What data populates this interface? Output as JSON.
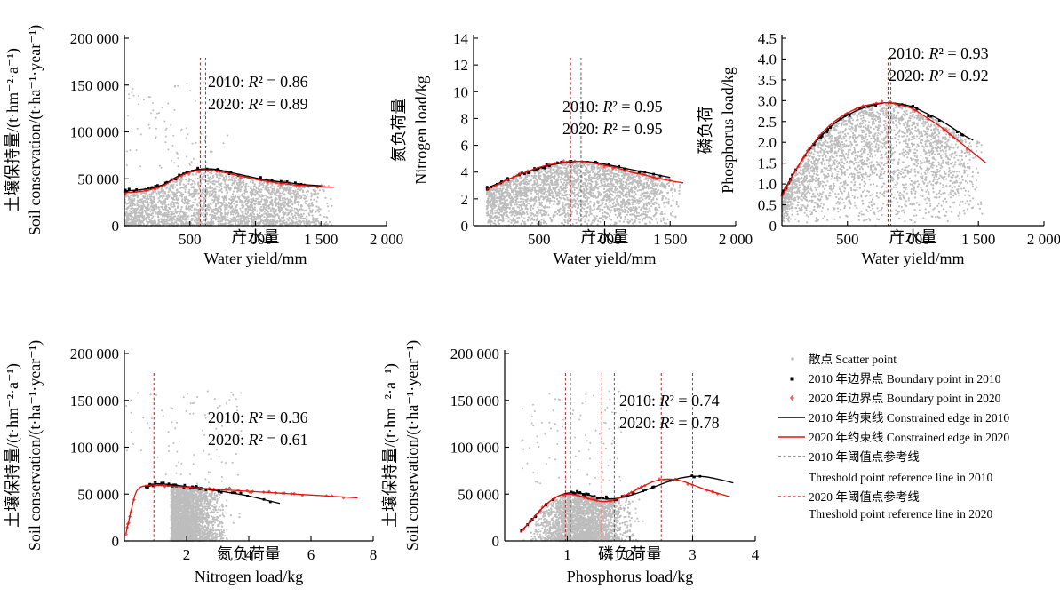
{
  "colors": {
    "scatter": "#bdbdbd",
    "line2010": "#000000",
    "line2020": "#e8100a",
    "boundary2010": "#000000",
    "boundary2020": "#ef5a5a",
    "ref2010": "#555555",
    "ref2020": "#e8100a"
  },
  "legend": {
    "scatter": "散点 Scatter point",
    "b2010": "2010 年边界点 Boundary point in 2010",
    "b2020": "2020 年边界点 Boundary point in 2020",
    "c2010": "2010 年约束线 Constrained edge in 2010",
    "c2020": "2020 年约束线 Constrained edge in 2020",
    "r2010a": "2010 年阈值点参考线",
    "r2010b": "Threshold point reference line in 2010",
    "r2020a": "2020 年阈值点参考线",
    "r2020b": "Threshold point reference line in 2020"
  },
  "chart_data": [
    {
      "type": "scatter",
      "xlabel_zh": "产水量",
      "xlabel_en": "Water yield/mm",
      "ylabel_zh": "土壤保持量/(t·hm⁻²·a⁻¹)",
      "ylabel_en": "Soil conservation/(t·ha⁻¹·year⁻¹)",
      "xlim": [
        0,
        2000
      ],
      "ylim": [
        0,
        200000
      ],
      "xticks": [
        500,
        1000,
        1500,
        2000
      ],
      "xtick_labels": [
        "500",
        "1 000",
        "1 500",
        "2 000"
      ],
      "yticks": [
        0,
        50000,
        100000,
        150000,
        200000
      ],
      "ytick_labels": [
        "0",
        "50 000",
        "100 000",
        "150 000",
        "200 000"
      ],
      "annotation": {
        "r2_2010": "2010: R² = 0.86",
        "r2_2020": "2020: R² = 0.89"
      },
      "threshold_2010": [
        620
      ],
      "threshold_2020": [
        580
      ],
      "series": [
        {
          "name": "2010 年约束线 Constrained edge in 2010",
          "x": [
            0,
            100,
            200,
            300,
            400,
            500,
            600,
            700,
            800,
            900,
            1000,
            1100,
            1200,
            1300,
            1400,
            1500
          ],
          "y": [
            37000,
            38000,
            40000,
            44000,
            52000,
            58000,
            60500,
            60000,
            57000,
            54000,
            51000,
            48500,
            46500,
            45000,
            43500,
            42500
          ]
        },
        {
          "name": "2020 年约束线 Constrained edge in 2020",
          "x": [
            0,
            100,
            200,
            300,
            400,
            500,
            600,
            700,
            800,
            900,
            1000,
            1100,
            1200,
            1300,
            1400,
            1500,
            1600
          ],
          "y": [
            35000,
            36000,
            38500,
            43000,
            51000,
            57000,
            59500,
            58500,
            55500,
            52500,
            49500,
            47000,
            45000,
            43500,
            42500,
            41500,
            41000
          ]
        }
      ]
    },
    {
      "type": "scatter",
      "xlabel_zh": "产水量",
      "xlabel_en": "Water yield/mm",
      "ylabel_zh": "氮负荷量",
      "ylabel_en": "Nitrogen load/kg",
      "xlim": [
        0,
        2000
      ],
      "ylim": [
        0,
        14
      ],
      "xticks": [
        500,
        1000,
        1500,
        2000
      ],
      "xtick_labels": [
        "500",
        "1 000",
        "1 500",
        "2 000"
      ],
      "yticks": [
        0,
        2,
        4,
        6,
        8,
        10,
        12,
        14
      ],
      "ytick_labels": [
        "0",
        "2",
        "4",
        "6",
        "8",
        "10",
        "12",
        "14"
      ],
      "annotation": {
        "r2_2010": "2010: R² = 0.95",
        "r2_2020": "2020: R² = 0.95"
      },
      "threshold_2010": [
        820
      ],
      "threshold_2020": [
        740
      ],
      "series": [
        {
          "name": "2010 年约束线 Constrained edge in 2010",
          "x": [
            100,
            200,
            300,
            400,
            500,
            600,
            700,
            800,
            900,
            1000,
            1100,
            1200,
            1300,
            1400,
            1500
          ],
          "y": [
            2.8,
            3.2,
            3.6,
            4.0,
            4.3,
            4.55,
            4.7,
            4.8,
            4.75,
            4.6,
            4.4,
            4.2,
            4.0,
            3.8,
            3.6
          ]
        },
        {
          "name": "2020 年约束线 Constrained edge in 2020",
          "x": [
            100,
            200,
            300,
            400,
            500,
            600,
            700,
            800,
            900,
            1000,
            1100,
            1200,
            1300,
            1400,
            1500,
            1600
          ],
          "y": [
            2.7,
            3.15,
            3.6,
            4.0,
            4.35,
            4.6,
            4.75,
            4.8,
            4.7,
            4.5,
            4.3,
            4.0,
            3.8,
            3.55,
            3.35,
            3.2
          ]
        }
      ]
    },
    {
      "type": "scatter",
      "xlabel_zh": "产水量",
      "xlabel_en": "Water yield/mm",
      "ylabel_zh": "磷负荷",
      "ylabel_en": "Phosphorus load/kg",
      "xlim": [
        0,
        2000
      ],
      "ylim": [
        0,
        4.5
      ],
      "xticks": [
        500,
        1000,
        1500,
        2000
      ],
      "xtick_labels": [
        "500",
        "1 000",
        "1 500",
        "2 000"
      ],
      "yticks": [
        0,
        0.5,
        1.0,
        1.5,
        2.0,
        2.5,
        3.0,
        3.5,
        4.0,
        4.5
      ],
      "ytick_labels": [
        "0",
        "0.5",
        "1.0",
        "1.5",
        "2.0",
        "2.5",
        "3.0",
        "3.5",
        "4.0",
        "4.5"
      ],
      "annotation": {
        "r2_2010": "2010: R² = 0.93",
        "r2_2020": "2020: R² = 0.92"
      },
      "threshold_2010": [
        830
      ],
      "threshold_2020": [
        810
      ],
      "series": [
        {
          "name": "2010 年约束线 Constrained edge in 2010",
          "x": [
            0,
            100,
            200,
            300,
            400,
            500,
            600,
            700,
            800,
            900,
            1000,
            1100,
            1200,
            1300,
            1400,
            1460
          ],
          "y": [
            0.75,
            1.3,
            1.8,
            2.15,
            2.45,
            2.65,
            2.8,
            2.9,
            2.95,
            2.92,
            2.85,
            2.7,
            2.55,
            2.35,
            2.15,
            2.05
          ]
        },
        {
          "name": "2020 年约束线 Constrained edge in 2020",
          "x": [
            0,
            100,
            200,
            300,
            400,
            500,
            600,
            700,
            800,
            900,
            1000,
            1100,
            1200,
            1300,
            1400,
            1500,
            1560
          ],
          "y": [
            0.7,
            1.3,
            1.8,
            2.2,
            2.5,
            2.7,
            2.85,
            2.92,
            2.95,
            2.9,
            2.8,
            2.6,
            2.4,
            2.15,
            1.9,
            1.65,
            1.5
          ]
        }
      ]
    },
    {
      "type": "scatter",
      "xlabel_zh": "氮负荷量",
      "xlabel_en": "Nitrogen load/kg",
      "ylabel_zh": "土壤保持量/(t·hm⁻²·a⁻¹)",
      "ylabel_en": "Soil conservation/(t·ha⁻¹·year⁻¹)",
      "xlim": [
        0,
        8
      ],
      "ylim": [
        0,
        200000
      ],
      "xticks": [
        2,
        4,
        6,
        8
      ],
      "xtick_labels": [
        "2",
        "4",
        "6",
        "8"
      ],
      "yticks": [
        0,
        50000,
        100000,
        150000,
        200000
      ],
      "ytick_labels": [
        "0",
        "50 000",
        "100 000",
        "150 000",
        "200 000"
      ],
      "annotation": {
        "r2_2010": "2010: R² = 0.36",
        "r2_2020": "2020: R² = 0.61"
      },
      "threshold_2010": [],
      "threshold_2020": [
        0.95
      ],
      "series": [
        {
          "name": "2010 年约束线 Constrained edge in 2010",
          "x": [
            0.7,
            1,
            1.5,
            2,
            2.5,
            3,
            3.5,
            4,
            4.5,
            5
          ],
          "y": [
            58000,
            61000,
            60000,
            58000,
            56000,
            53500,
            51000,
            48000,
            44000,
            40000
          ]
        },
        {
          "name": "2020 年约束线 Constrained edge in 2020",
          "x": [
            0.05,
            0.2,
            0.35,
            0.5,
            0.7,
            1,
            2,
            3,
            4,
            5,
            6,
            7,
            7.5
          ],
          "y": [
            8000,
            30000,
            50000,
            57000,
            59000,
            59500,
            57500,
            55000,
            53000,
            51000,
            49000,
            47000,
            46000
          ]
        }
      ]
    },
    {
      "type": "scatter",
      "xlabel_zh": "磷负荷量",
      "xlabel_en": "Phosphorus load/kg",
      "ylabel_zh": "土壤保持量/(t·hm⁻²·a⁻¹)",
      "ylabel_en": "Soil conservation/(t·ha⁻¹·year⁻¹)",
      "xlim": [
        0,
        4
      ],
      "ylim": [
        0,
        200000
      ],
      "xticks": [
        1,
        2,
        3,
        4
      ],
      "xtick_labels": [
        "1",
        "2",
        "3",
        "4"
      ],
      "yticks": [
        0,
        50000,
        100000,
        150000,
        200000
      ],
      "ytick_labels": [
        "0",
        "50 000",
        "100 000",
        "150 000",
        "200 000"
      ],
      "annotation": {
        "r2_2010": "2010: R² = 0.74",
        "r2_2020": "2020: R² = 0.78"
      },
      "threshold_2010": [
        1.05,
        1.75,
        3.0
      ],
      "threshold_2020": [
        0.97,
        1.55,
        2.5
      ],
      "series": [
        {
          "name": "2010 年约束线 Constrained edge in 2010",
          "x": [
            0.25,
            0.4,
            0.6,
            0.8,
            1.0,
            1.2,
            1.4,
            1.6,
            1.8,
            2.0,
            2.2,
            2.4,
            2.6,
            2.8,
            3.0,
            3.2,
            3.4,
            3.65
          ],
          "y": [
            10000,
            20000,
            35000,
            46000,
            51000,
            51000,
            48000,
            45000,
            45500,
            48500,
            53000,
            58000,
            63000,
            67000,
            69000,
            68500,
            66000,
            62000
          ]
        },
        {
          "name": "2020 年约束线 Constrained edge in 2020",
          "x": [
            0.25,
            0.4,
            0.6,
            0.8,
            1.0,
            1.2,
            1.4,
            1.6,
            1.8,
            2.0,
            2.2,
            2.4,
            2.6,
            2.8,
            3.0,
            3.2,
            3.4,
            3.6
          ],
          "y": [
            9000,
            20000,
            35000,
            46000,
            50000,
            48000,
            44000,
            42000,
            45000,
            51000,
            58000,
            64000,
            66000,
            64500,
            60000,
            55000,
            51000,
            47000
          ]
        }
      ]
    }
  ]
}
